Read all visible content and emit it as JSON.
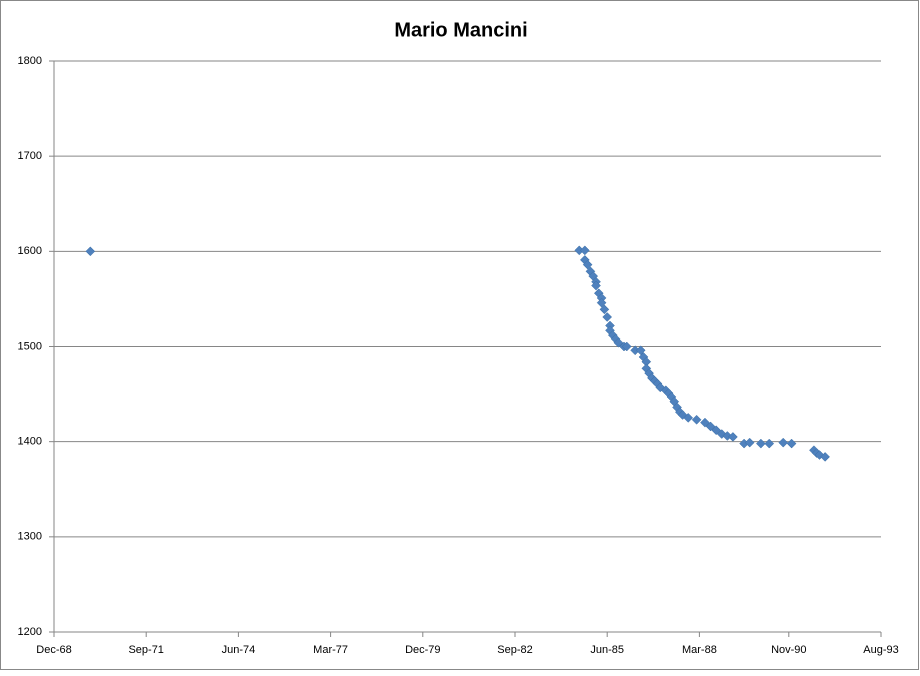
{
  "chart_data": {
    "type": "scatter",
    "title": "Mario Mancini",
    "marker": "diamond",
    "grid": true,
    "series": [
      {
        "color": "#4f81bd",
        "x": [
          "1970-01",
          "1984-08",
          "1984-10",
          "1984-10",
          "1984-11",
          "1984-12",
          "1985-01",
          "1985-02",
          "1985-02",
          "1985-03",
          "1985-04",
          "1985-04",
          "1985-05",
          "1985-06",
          "1985-07",
          "1985-07",
          "1985-08",
          "1985-09",
          "1985-10",
          "1985-12",
          "1986-01",
          "1986-04",
          "1986-06",
          "1986-07",
          "1986-08",
          "1986-08",
          "1986-09",
          "1986-10",
          "1986-11",
          "1986-12",
          "1987-01",
          "1987-03",
          "1987-04",
          "1987-05",
          "1987-06",
          "1987-07",
          "1987-08",
          "1987-09",
          "1987-11",
          "1988-02",
          "1988-05",
          "1988-07",
          "1988-09",
          "1988-11",
          "1989-01",
          "1989-03",
          "1989-07",
          "1989-09",
          "1990-01",
          "1990-04",
          "1990-09",
          "1990-12",
          "1991-08",
          "1991-09",
          "1991-10",
          "1991-12"
        ],
        "values": [
          1600,
          1601,
          1601,
          1591,
          1586,
          1579,
          1574,
          1568,
          1564,
          1556,
          1551,
          1546,
          1539,
          1531,
          1522,
          1517,
          1512,
          1508,
          1504,
          1500,
          1500,
          1496,
          1496,
          1489,
          1484,
          1477,
          1472,
          1467,
          1464,
          1461,
          1457,
          1454,
          1451,
          1447,
          1442,
          1436,
          1431,
          1428,
          1425,
          1423,
          1420,
          1416,
          1412,
          1408,
          1406,
          1405,
          1398,
          1399,
          1398,
          1398,
          1399,
          1398,
          1391,
          1388,
          1386,
          1384
        ]
      }
    ],
    "xlim": [
      "1968-12",
      "1993-08"
    ],
    "xticks": [
      {
        "value": "1968-12",
        "label": "Dec-68"
      },
      {
        "value": "1971-09",
        "label": "Sep-71"
      },
      {
        "value": "1974-06",
        "label": "Jun-74"
      },
      {
        "value": "1977-03",
        "label": "Mar-77"
      },
      {
        "value": "1979-12",
        "label": "Dec-79"
      },
      {
        "value": "1982-09",
        "label": "Sep-82"
      },
      {
        "value": "1985-06",
        "label": "Jun-85"
      },
      {
        "value": "1988-03",
        "label": "Mar-88"
      },
      {
        "value": "1990-11",
        "label": "Nov-90"
      },
      {
        "value": "1993-08",
        "label": "Aug-93"
      }
    ],
    "ylim": [
      1200,
      1800
    ],
    "yticks": [
      1200,
      1300,
      1400,
      1500,
      1600,
      1700,
      1800
    ]
  }
}
